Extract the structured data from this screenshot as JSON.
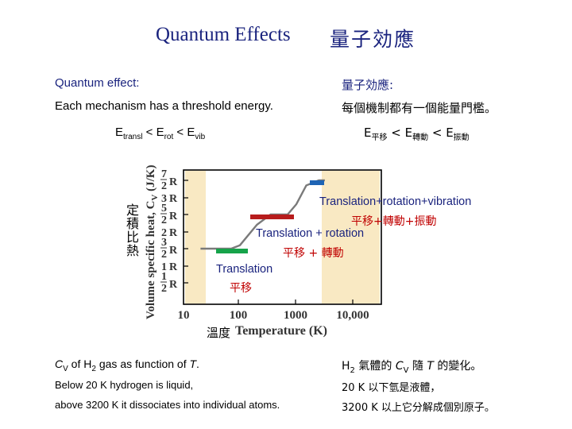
{
  "slide": {
    "title_en": "Quantum Effects",
    "title_zh": "量子効應",
    "left": {
      "heading": "Quantum effect:",
      "threshold": "Each mechanism has a threshold energy.",
      "caption_cv": "as function of ",
      "caption_liquid": "Below 20 K hydrogen is liquid,",
      "caption_dissociate": "above 3200 K it dissociates into individual atoms."
    },
    "right": {
      "heading": "量子効應:",
      "threshold": "每個機制都有一個能量門檻。",
      "caption_cv": "氣體的 ",
      "caption_cv_tail": " 的變化。",
      "caption_liquid": "20 K 以下氫是液體，",
      "caption_dissociate": "3200 K 以上它分解成個別原子。"
    },
    "energy_en": {
      "E1": "E",
      "s1": "transl",
      "lt1": " < ",
      "E2": "E",
      "s2": "rot",
      "lt2": " < ",
      "E3": "E",
      "s3": "vib"
    },
    "energy_zh": {
      "E1": "E",
      "s1": "平移",
      "lt1": " < ",
      "E2": "E",
      "s2": "轉動",
      "lt2": " < ",
      "E3": "E",
      "s3": "振動"
    },
    "caption_symbols": {
      "CV": "C",
      "V": "V",
      "H2": "H",
      "two": "2",
      "T": "T",
      "sui": " 隨 ",
      "of": " of ",
      "gas": " gas ",
      "period": "."
    }
  },
  "figure": {
    "y_axis_label": "Volume specific heat, C",
    "y_axis_sub": "V",
    "y_axis_unit": " (J/K)",
    "y_axis_label_zh": "定積比熱",
    "x_axis_label": "Temperature (K)",
    "x_axis_label_zh": "溫度",
    "y_ticks": [
      "7/2 R",
      "3 R",
      "5/2 R",
      "2 R",
      "3/2 R",
      "1 R",
      "1/2 R"
    ],
    "x_ticks": [
      "10",
      "100",
      "1000",
      "10,000"
    ],
    "labels": {
      "transl_en": "Translation",
      "transl_zh": "平移",
      "rot_en": "Translation + rotation",
      "rot_zh": "平移 + 轉動",
      "vib_en": "Translation+rotation+vibration",
      "vib_zh": "平移+轉動+振動"
    },
    "colors": {
      "translation": "#16a34a",
      "rotation": "#b71c1c",
      "vibration": "#1e64b4",
      "shade": "#f9e9c3",
      "curve": "#7a7a7a",
      "label_text": "#1a237e",
      "label_zh": "#c00000"
    }
  },
  "chart_data": {
    "type": "line",
    "xlabel": "Temperature (K)",
    "ylabel": "Volume specific heat, C_V (J/K)",
    "x_scale": "log",
    "xlim": [
      10,
      10000
    ],
    "ylim": [
      0,
      4
    ],
    "y_unit": "R",
    "series": [
      {
        "x": [
          20,
          70,
          100,
          200,
          350,
          700,
          1000,
          1500,
          2500,
          3200
        ],
        "y": [
          1.5,
          1.5,
          1.6,
          2.2,
          2.5,
          2.5,
          2.8,
          3.35,
          3.5,
          3.5
        ]
      }
    ],
    "plateaus": [
      {
        "level": 1.5,
        "x_range": [
          30,
          70
        ]
      },
      {
        "level": 2.5,
        "x_range": [
          300,
          800
        ]
      },
      {
        "level": 3.5,
        "x_range": [
          2500,
          3200
        ]
      }
    ],
    "shaded_regions": [
      [
        10,
        20
      ],
      [
        3200,
        10000
      ]
    ]
  }
}
